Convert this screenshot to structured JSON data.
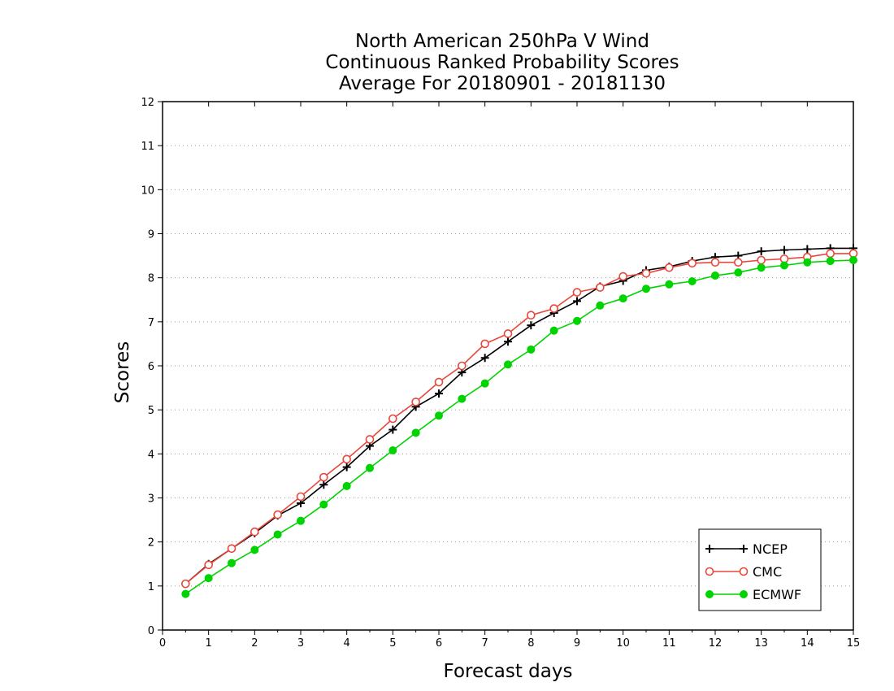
{
  "chart_data": {
    "type": "line",
    "title": [
      "North American 250hPa V Wind",
      "Continuous Ranked Probability Scores",
      "Average For 20180901 - 20181130"
    ],
    "xlabel": "Forecast days",
    "ylabel": "Scores",
    "xlim": [
      0,
      15
    ],
    "ylim": [
      0,
      12
    ],
    "xticks": [
      "0",
      "1",
      "2",
      "3",
      "4",
      "5",
      "6",
      "7",
      "8",
      "9",
      "10",
      "11",
      "12",
      "13",
      "14",
      "15"
    ],
    "yticks": [
      "0",
      "1",
      "2",
      "3",
      "4",
      "5",
      "6",
      "7",
      "8",
      "9",
      "10",
      "11",
      "12"
    ],
    "grid": "horizontal-dotted",
    "legend_position": "bottom-right",
    "x": [
      0.5,
      1,
      1.5,
      2,
      2.5,
      3,
      3.5,
      4,
      4.5,
      5,
      5.5,
      6,
      6.5,
      7,
      7.5,
      8,
      8.5,
      9,
      9.5,
      10,
      10.5,
      11,
      11.5,
      12,
      12.5,
      13,
      13.5,
      14,
      14.5,
      15
    ],
    "series": [
      {
        "name": "NCEP",
        "color": "#000000",
        "marker": "plus",
        "values": [
          1.05,
          1.5,
          1.85,
          2.2,
          2.6,
          2.88,
          3.3,
          3.7,
          4.18,
          4.55,
          5.07,
          5.37,
          5.85,
          6.18,
          6.55,
          6.92,
          7.2,
          7.47,
          7.8,
          7.93,
          8.17,
          8.25,
          8.38,
          8.47,
          8.5,
          8.6,
          8.63,
          8.65,
          8.67,
          8.67
        ]
      },
      {
        "name": "CMC",
        "color": "#e8483c",
        "marker": "open-circle",
        "values": [
          1.05,
          1.48,
          1.85,
          2.23,
          2.62,
          3.03,
          3.47,
          3.88,
          4.33,
          4.8,
          5.18,
          5.63,
          6.0,
          6.5,
          6.73,
          7.15,
          7.3,
          7.67,
          7.78,
          8.03,
          8.1,
          8.23,
          8.33,
          8.35,
          8.35,
          8.4,
          8.43,
          8.47,
          8.55,
          8.55
        ]
      },
      {
        "name": "ECMWF",
        "color": "#00d400",
        "marker": "filled-circle",
        "values": [
          0.82,
          1.18,
          1.52,
          1.82,
          2.17,
          2.48,
          2.85,
          3.27,
          3.68,
          4.08,
          4.48,
          4.87,
          5.25,
          5.6,
          6.03,
          6.37,
          6.8,
          7.02,
          7.37,
          7.53,
          7.75,
          7.85,
          7.92,
          8.05,
          8.12,
          8.23,
          8.28,
          8.35,
          8.38,
          8.4
        ]
      }
    ]
  }
}
